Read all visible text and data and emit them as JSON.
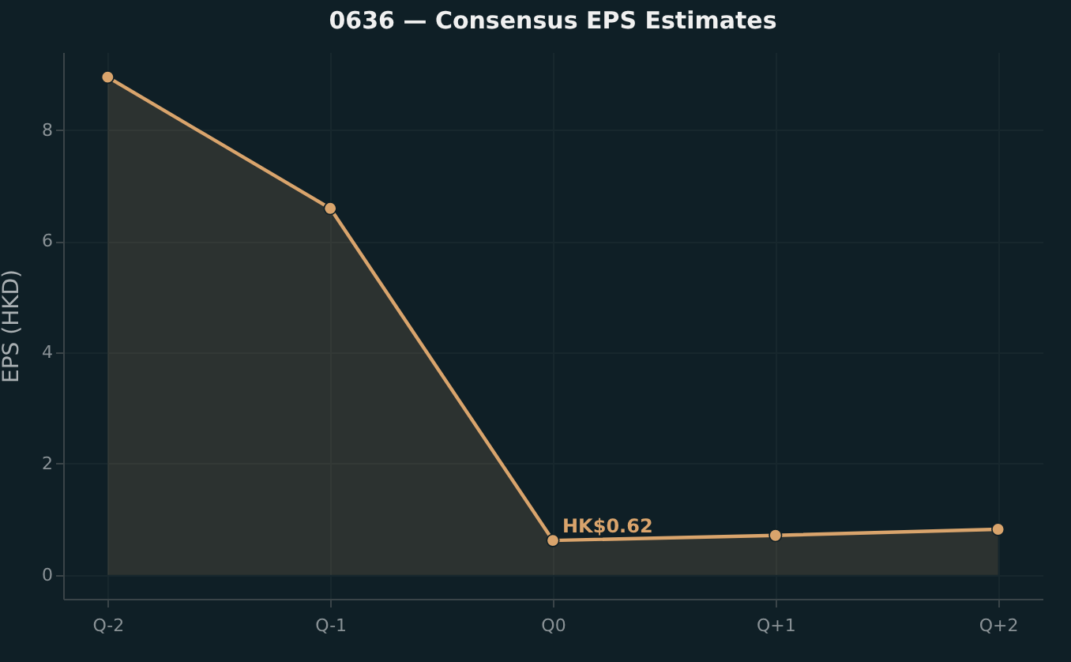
{
  "chart_data": {
    "type": "area",
    "title": "0636 — Consensus EPS Estimates",
    "ylabel": "EPS (HKD)",
    "categories": [
      "Q-2",
      "Q-1",
      "Q0",
      "Q+1",
      "Q+2"
    ],
    "series": [
      {
        "color": "#d9a46c",
        "values": [
          8.95,
          6.59,
          0.62,
          0.71,
          0.82
        ]
      }
    ],
    "ylim": [
      -0.43,
      9.4
    ],
    "yticks": [
      0,
      2,
      4,
      6,
      8
    ],
    "grid": true,
    "marker": "circle",
    "annotations": [
      {
        "text": "HK$0.62",
        "x": "Q0",
        "y": 0.62
      }
    ]
  }
}
